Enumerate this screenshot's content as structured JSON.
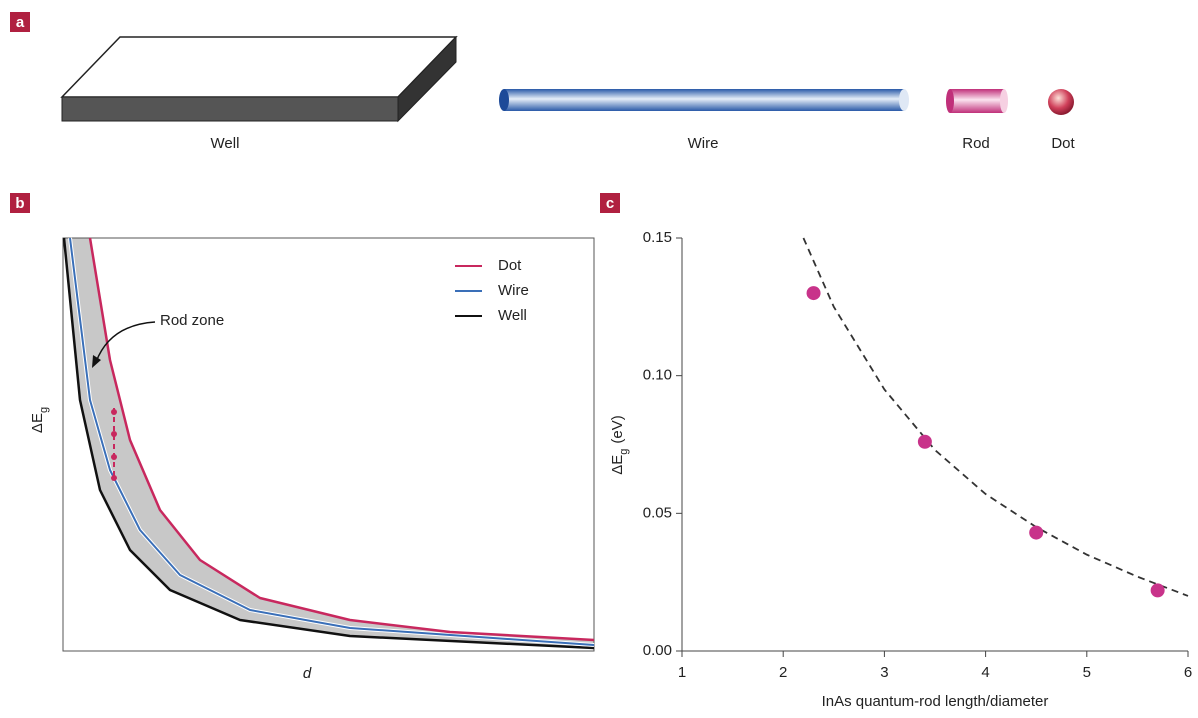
{
  "panel_labels": [
    "a",
    "b",
    "c"
  ],
  "panel_a": {
    "labels": [
      "Well",
      "Wire",
      "Rod",
      "Dot"
    ]
  },
  "panel_b": {
    "x_label": "d",
    "y_label": "ΔE",
    "y_label_sub": "g",
    "annotation": "Rod zone",
    "legend": [
      {
        "name": "Dot",
        "color": "#c8285e"
      },
      {
        "name": "Wire",
        "color": "#3a6fb8"
      },
      {
        "name": "Well",
        "color": "#111111"
      }
    ]
  },
  "chart_data": {
    "type": "scatter",
    "x_label": "InAs quantum-rod length/diameter",
    "y_label": "ΔE",
    "y_label_sub": "g",
    "y_label_unit": "(eV)",
    "x": [
      2.3,
      3.4,
      4.5,
      5.7
    ],
    "values": [
      0.13,
      0.076,
      0.043,
      0.022
    ],
    "color": "#c8338a",
    "fit": {
      "x": [
        2.2,
        2.5,
        3,
        3.5,
        4,
        4.5,
        5,
        5.5,
        6
      ],
      "values": [
        0.15,
        0.125,
        0.095,
        0.073,
        0.057,
        0.045,
        0.035,
        0.027,
        0.02
      ],
      "color": "#333333",
      "dash": true
    },
    "xlim": [
      1,
      6
    ],
    "ylim": [
      0,
      0.15
    ],
    "xticks": [
      1,
      2,
      3,
      4,
      5,
      6
    ],
    "yticks": [
      {
        "value": 0,
        "label": "0.00"
      },
      0.05,
      {
        "value": 0.1,
        "label": "0.10"
      },
      0.15
    ]
  }
}
